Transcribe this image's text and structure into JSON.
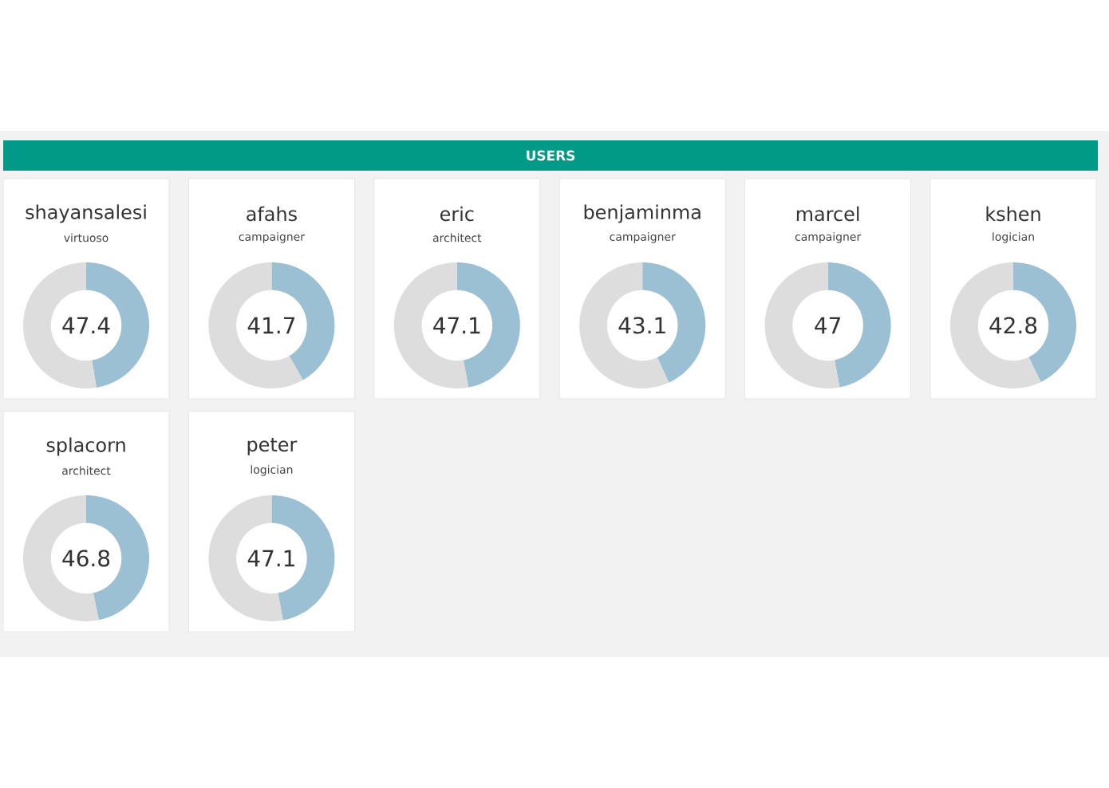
{
  "chart_data": [
    {
      "type": "other",
      "title": "USERS"
    },
    {
      "type": "donut",
      "title": "shayansalesi",
      "subtitle": "virtuoso",
      "categories": [
        null,
        null
      ],
      "values": [
        47.4,
        52.6
      ],
      "colors": [
        "#9bbfd3",
        "#dddddd"
      ],
      "annotations": [
        "47.4"
      ]
    },
    {
      "type": "donut",
      "title": "afahs",
      "subtitle": "campaigner",
      "categories": [
        null,
        null
      ],
      "values": [
        41.7,
        58.3
      ],
      "colors": [
        "#9bbfd3",
        "#dddddd"
      ],
      "annotations": [
        "41.7"
      ]
    },
    {
      "type": "donut",
      "title": "eric",
      "subtitle": "architect",
      "categories": [
        null,
        null
      ],
      "values": [
        47.1,
        52.9
      ],
      "colors": [
        "#9bbfd3",
        "#dddddd"
      ],
      "annotations": [
        "47.1"
      ]
    },
    {
      "type": "donut",
      "title": "benjaminma",
      "subtitle": "campaigner",
      "categories": [
        null,
        null
      ],
      "values": [
        43.1,
        56.9
      ],
      "colors": [
        "#9bbfd3",
        "#dddddd"
      ],
      "annotations": [
        "43.1"
      ]
    },
    {
      "type": "donut",
      "title": "marcel",
      "subtitle": "campaigner",
      "categories": [
        null,
        null
      ],
      "values": [
        47,
        53
      ],
      "colors": [
        "#9bbfd3",
        "#dddddd"
      ],
      "annotations": [
        "47"
      ]
    },
    {
      "type": "donut",
      "title": "kshen",
      "subtitle": "logician",
      "categories": [
        null,
        null
      ],
      "values": [
        42.8,
        57.2
      ],
      "colors": [
        "#9bbfd3",
        "#dddddd"
      ],
      "annotations": [
        "42.8"
      ]
    },
    {
      "type": "donut",
      "title": "splacorn",
      "subtitle": "architect",
      "categories": [
        null,
        null
      ],
      "values": [
        46.8,
        53.2
      ],
      "colors": [
        "#9bbfd3",
        "#dddddd"
      ],
      "annotations": [
        "46.8"
      ]
    },
    {
      "type": "donut",
      "title": "peter",
      "subtitle": "logician",
      "categories": [
        null,
        null
      ],
      "values": [
        47.1,
        52.9
      ],
      "colors": [
        "#9bbfd3",
        "#dddddd"
      ],
      "annotations": [
        "47.1"
      ]
    }
  ]
}
